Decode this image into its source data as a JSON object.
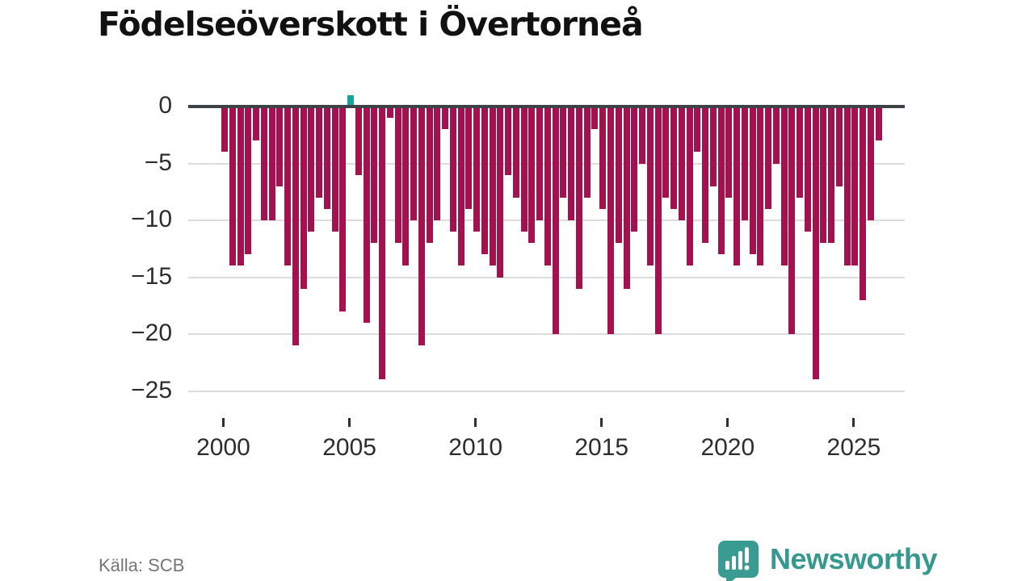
{
  "title": "Födelseöverskott i Övertorneå",
  "source": "Källa: SCB",
  "branding": {
    "name": "Newsworthy",
    "logo_icon": "newsworthy-speech-bubble-bar-chart-icon",
    "color": "#37988f"
  },
  "colors": {
    "negative_bar": "#a3114f",
    "positive_bar": "#16a3a0",
    "axis_line": "#3d4247",
    "gridline": "#dcdcdc",
    "tick_label": "#2d2d2d",
    "source_text": "#757575"
  },
  "chart_data": {
    "type": "bar",
    "title": "Födelseöverskott i Övertorneå",
    "xlabel": "",
    "ylabel": "",
    "y_ticks": [
      0,
      -5,
      -10,
      -15,
      -20,
      -25
    ],
    "ylim": [
      -25,
      1
    ],
    "grid": true,
    "x_tick_labels": [
      "2000",
      "2005",
      "2010",
      "2015",
      "2020",
      "2025"
    ],
    "x_tick_bar_indices": [
      0,
      16,
      32,
      48,
      64,
      80
    ],
    "series_note": "one bar per period from 2000 to mid-2025; single positive teal bar at the 2005 tick",
    "values": [
      -4,
      -14,
      -14,
      -13,
      -3,
      -10,
      -10,
      -7,
      -14,
      -21,
      -16,
      -11,
      -8,
      -9,
      -11,
      -18,
      1,
      -6,
      -19,
      -12,
      -24,
      -1,
      -12,
      -14,
      -10,
      -21,
      -12,
      -10,
      -2,
      -11,
      -14,
      -9,
      -11,
      -13,
      -14,
      -15,
      -6,
      -8,
      -11,
      -12,
      -10,
      -14,
      -20,
      -8,
      -10,
      -16,
      -8,
      -2,
      -9,
      -20,
      -12,
      -16,
      -11,
      -5,
      -14,
      -20,
      -8,
      -9,
      -10,
      -14,
      -4,
      -12,
      -7,
      -13,
      -8,
      -14,
      -10,
      -13,
      -14,
      -9,
      -5,
      -14,
      -20,
      -8,
      -11,
      -24,
      -12,
      -12,
      -7,
      -14,
      -14,
      -17,
      -10,
      -3
    ]
  }
}
